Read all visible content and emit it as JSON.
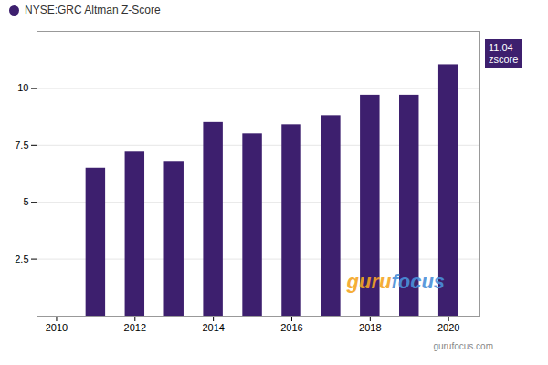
{
  "chart_data": {
    "type": "bar",
    "x": [
      2011,
      2012,
      2013,
      2014,
      2015,
      2016,
      2017,
      2018,
      2019,
      2020
    ],
    "series": [
      {
        "name": "NYSE:GRC Altman Z-Score",
        "color": "#3d1f6e",
        "values": [
          6.5,
          7.2,
          6.8,
          8.5,
          8.0,
          8.4,
          8.8,
          9.7,
          9.7,
          11.04
        ]
      }
    ],
    "xlim": [
      2009.5,
      2020.8
    ],
    "xticks": [
      2010,
      2012,
      2014,
      2016,
      2018,
      2020
    ],
    "ylim": [
      0,
      12.5
    ],
    "yticks": [
      2.5,
      5.0,
      7.5,
      10.0
    ],
    "grid": true,
    "legend": "upper left",
    "annotations": [
      "11.04\nzscore",
      "guru",
      "focus",
      "gurufocus.com"
    ]
  }
}
